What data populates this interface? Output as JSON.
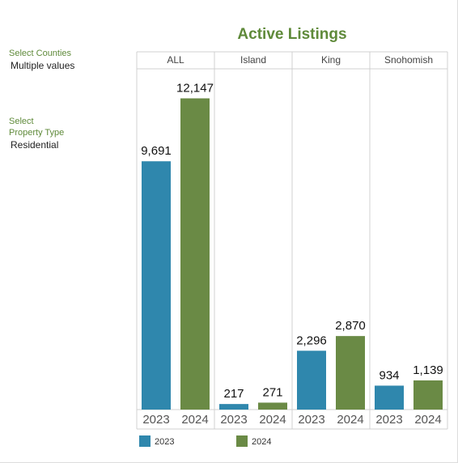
{
  "filters": [
    {
      "label": "Select Counties",
      "value": "Multiple values"
    },
    {
      "label": "Select Property Type",
      "value": "Residential"
    }
  ],
  "chart_data": {
    "type": "bar",
    "title": "Active Listings",
    "categories": [
      "ALL",
      "Island",
      "King",
      "Snohomish"
    ],
    "series": [
      {
        "name": "2023",
        "color": "#2f87ad",
        "values": [
          9691,
          217,
          2296,
          934
        ],
        "value_labels": [
          "9,691",
          "217",
          "2,296",
          "934"
        ]
      },
      {
        "name": "2024",
        "color": "#6a8a45",
        "values": [
          12147,
          271,
          2870,
          1139
        ],
        "value_labels": [
          "12,147",
          "271",
          "2,870",
          "1,139"
        ]
      }
    ],
    "ylim": [
      0,
      13300
    ]
  }
}
